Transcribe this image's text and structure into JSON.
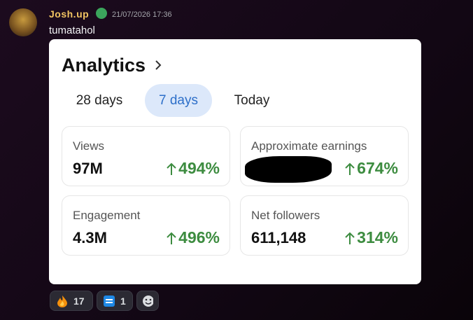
{
  "message": {
    "author": "Josh.up",
    "timestamp": "21/07/2026 17:36",
    "text": "tumatahol"
  },
  "card": {
    "title": "Analytics",
    "tabs": [
      "28 days",
      "7 days",
      "Today"
    ],
    "metrics": [
      {
        "label": "Views",
        "value": "97M",
        "change": "494%"
      },
      {
        "label": "Approximate earnings",
        "change": "674%"
      },
      {
        "label": "Engagement",
        "value": "4.3M",
        "change": "496%"
      },
      {
        "label": "Net followers",
        "value": "611,148",
        "change": "314%"
      }
    ]
  },
  "reactions": [
    {
      "count": "17"
    },
    {
      "count": "1"
    }
  ]
}
